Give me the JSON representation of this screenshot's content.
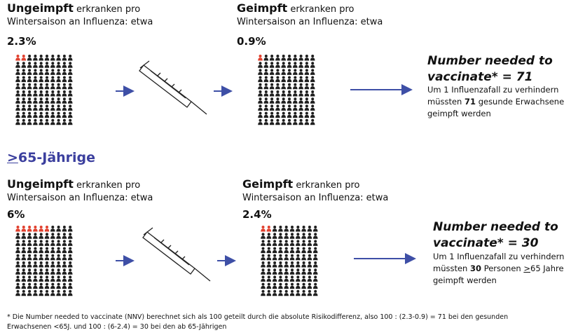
{
  "top": {
    "left": {
      "bold": "Ungeimpft",
      "rest": "erkranken pro",
      "line2": "Wintersaison an Influenza: etwa",
      "percent": "2.3%",
      "icons": 100,
      "highlighted": 2
    },
    "right": {
      "bold": "Geimpft",
      "rest": "erkranken pro",
      "line2": "Wintersaison an Influenza: etwa",
      "percent": "0.9%",
      "icons": 100,
      "highlighted": 1
    },
    "result": {
      "title1": "Number needed to",
      "title2": "vaccinate* = 71",
      "t1": "Um 1 Influenzafall zu verhindern",
      "t2": "müssten",
      "t3": "71",
      "t4": "gesunde Erwachsene",
      "t5": "geimpft werden"
    }
  },
  "heading": {
    "symbol": ">",
    "text": "65-Jährige"
  },
  "bottom": {
    "left": {
      "bold": "Ungeimpft",
      "rest": "erkranken pro",
      "line2": "Wintersaison an Influenza: etwa",
      "percent": "6%",
      "icons": 100,
      "highlighted": 6
    },
    "right": {
      "bold": "Geimpft",
      "rest": "erkranken pro",
      "line2": "Wintersaison an Influenza: etwa",
      "percent": "2.4%",
      "icons": 100,
      "highlighted": 2
    },
    "result": {
      "title1": "Number needed to",
      "title2": "vaccinate* = 30",
      "t1": "Um 1 Influenzafall zu verhindern",
      "t2": "müssten",
      "t3": "30",
      "t4": "Personen",
      "t5": ">",
      "t6": "65 Jahre",
      "t7": "geimpft werden"
    }
  },
  "footnote": {
    "line1": "* Die Number needed to vaccinate (NNV) berechnet sich als 100 geteilt durch die absolute Risikodifferenz, also 100 : (2.3-0.9) = 71 bei den gesunden",
    "line2": "Erwachsenen <65J. und 100 : (6-2.4) = 30 bei den ab 65-Jährigen"
  }
}
